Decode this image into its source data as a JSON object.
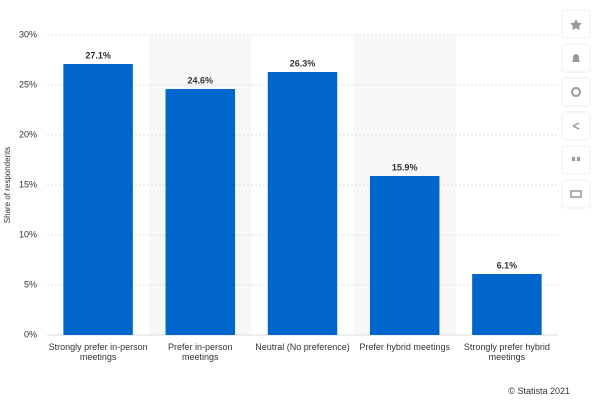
{
  "chart_data": {
    "type": "bar",
    "y_axis_label": "Share of respondents",
    "source": "© Statista 2021",
    "categories": [
      "Strongly prefer in-person meetings",
      "Prefer in-person meetings",
      "Neutral (No preference)",
      "Prefer hybrid meetings",
      "Strongly prefer hybrid meetings"
    ],
    "values": [
      27.1,
      24.6,
      26.3,
      15.9,
      6.1
    ],
    "value_labels": [
      "27.1%",
      "24.6%",
      "26.3%",
      "15.9%",
      "6.1%"
    ],
    "color": "#0066cc",
    "ylim": [
      0,
      30
    ],
    "yticks": [
      {
        "value": 0,
        "label": "0%"
      },
      {
        "value": 5,
        "label": "5%"
      },
      {
        "value": 10,
        "label": "10%"
      },
      {
        "value": 15,
        "label": "15%"
      },
      {
        "value": 20,
        "label": "20%"
      },
      {
        "value": 25,
        "label": "25%"
      },
      {
        "value": 30,
        "label": "30%"
      }
    ],
    "grid": true
  }
}
